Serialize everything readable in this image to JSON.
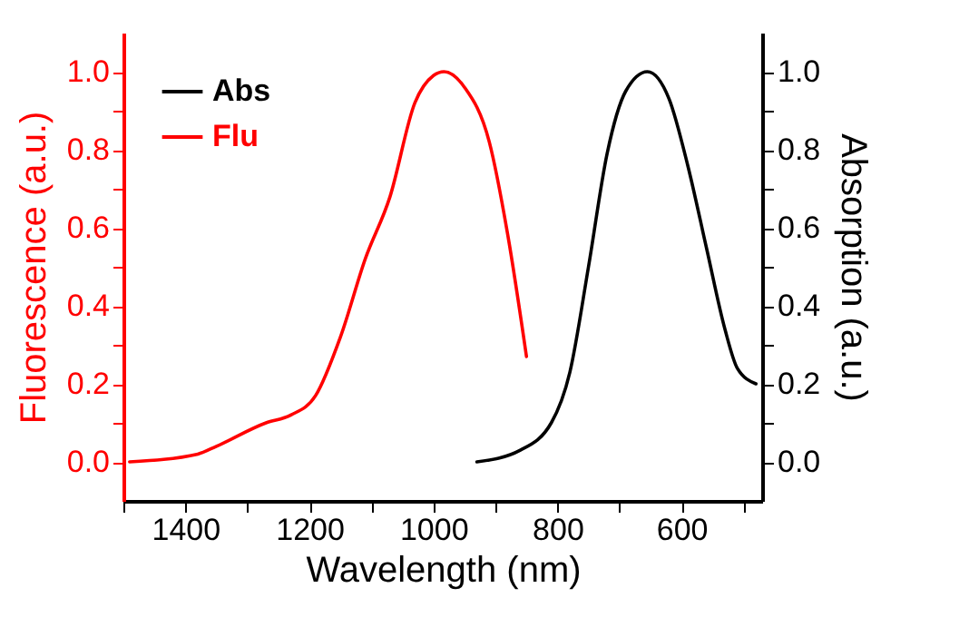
{
  "chart_data": {
    "type": "line",
    "xlabel": "Wavelength (nm)",
    "ylabel": "Fluorescence (a.u.)",
    "y2label": "Absorption (a.u.)",
    "xlim": [
      1500,
      470
    ],
    "xticks": [
      {
        "value": 1500,
        "label": null
      },
      1400,
      {
        "value": 1300,
        "label": null
      },
      1200,
      {
        "value": 1100,
        "label": null
      },
      1000,
      {
        "value": 900,
        "label": null
      },
      800,
      {
        "value": 700,
        "label": null
      },
      600,
      {
        "value": 500,
        "label": null
      }
    ],
    "ylim": [
      -0.1,
      1.1
    ],
    "yticks": [
      {
        "value": 0,
        "label": "0.0"
      },
      {
        "value": 0.1,
        "label": null
      },
      {
        "value": 0.2,
        "label": "0.2"
      },
      {
        "value": 0.3,
        "label": null
      },
      {
        "value": 0.4,
        "label": "0.4"
      },
      {
        "value": 0.5,
        "label": null
      },
      {
        "value": 0.6,
        "label": "0.6"
      },
      {
        "value": 0.7,
        "label": null
      },
      {
        "value": 0.8,
        "label": "0.8"
      },
      {
        "value": 0.9,
        "label": null
      },
      {
        "value": 1,
        "label": "1.0"
      }
    ],
    "y2lim": [
      -0.1,
      1.1
    ],
    "y2ticks": [
      {
        "value": 0,
        "label": "0.0"
      },
      {
        "value": 0.1,
        "label": null
      },
      {
        "value": 0.2,
        "label": "0.2"
      },
      {
        "value": 0.3,
        "label": null
      },
      {
        "value": 0.4,
        "label": "0.4"
      },
      {
        "value": 0.5,
        "label": null
      },
      {
        "value": 0.6,
        "label": "0.6"
      },
      {
        "value": 0.7,
        "label": null
      },
      {
        "value": 0.8,
        "label": "0.8"
      },
      {
        "value": 0.9,
        "label": null
      },
      {
        "value": 1,
        "label": "1.0"
      }
    ],
    "legend": "top left",
    "line_style": "solid",
    "series": [
      {
        "name": "Abs",
        "color": "#000000",
        "axis": "y2",
        "x": [
          930,
          860,
          810,
          780,
          750,
          720,
          690,
          655,
          620,
          590,
          560,
          530,
          510,
          480
        ],
        "values": [
          0.0,
          0.03,
          0.1,
          0.23,
          0.5,
          0.79,
          0.95,
          1.0,
          0.93,
          0.76,
          0.55,
          0.34,
          0.24,
          0.2
        ]
      },
      {
        "name": "Flu",
        "color": "#ff0000",
        "axis": "y",
        "x": [
          1490,
          1380,
          1350,
          1270,
          1230,
          1190,
          1150,
          1110,
          1070,
          1030,
          1000,
          983,
          950,
          910,
          880,
          850
        ],
        "values": [
          0.0,
          0.02,
          0.04,
          0.1,
          0.12,
          0.17,
          0.32,
          0.52,
          0.68,
          0.92,
          0.99,
          1.0,
          0.96,
          0.82,
          0.58,
          0.27
        ]
      }
    ]
  }
}
